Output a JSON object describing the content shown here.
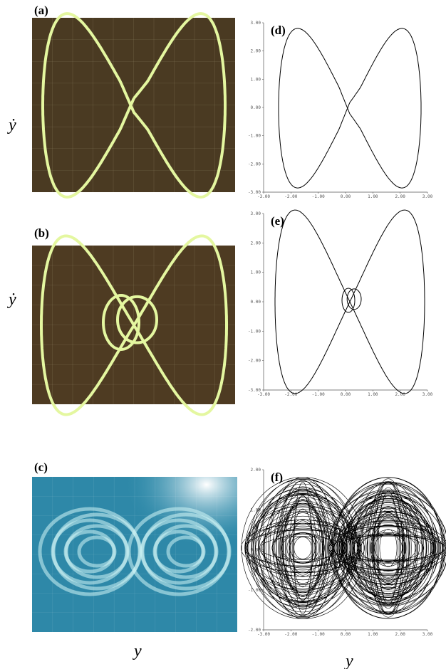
{
  "photos": [
    {
      "label": "(a)"
    },
    {
      "label": "(b)"
    },
    {
      "label": "(c)"
    }
  ],
  "plots": [
    {
      "label": "(d)",
      "yticks": [
        "3.00",
        "2.00",
        "1.00",
        "0.00",
        "-1.00",
        "-2.00",
        "-3.00"
      ],
      "xticks": [
        "-3.00",
        "-2.00",
        "-1.00",
        "0.00",
        "1.00",
        "2.00",
        "3.00"
      ]
    },
    {
      "label": "(e)",
      "yticks": [
        "3.00",
        "2.00",
        "1.00",
        "0.00",
        "-1.00",
        "-2.00",
        "-3.00"
      ],
      "xticks": [
        "-3.00",
        "-2.00",
        "-1.00",
        "0.00",
        "1.00",
        "2.00",
        "3.00"
      ]
    },
    {
      "label": "(f)",
      "yticks": [
        "2.00",
        "1.00",
        "0.00",
        "-1.00",
        "-2.00"
      ],
      "xticks": [
        "-3.00",
        "-2.00",
        "-1.00",
        "0.00",
        "1.00",
        "2.00",
        "3.00"
      ]
    }
  ],
  "y_axis_labels": [
    "ẏ",
    "ẏ"
  ],
  "x_axis_labels": [
    "y",
    "y"
  ]
}
